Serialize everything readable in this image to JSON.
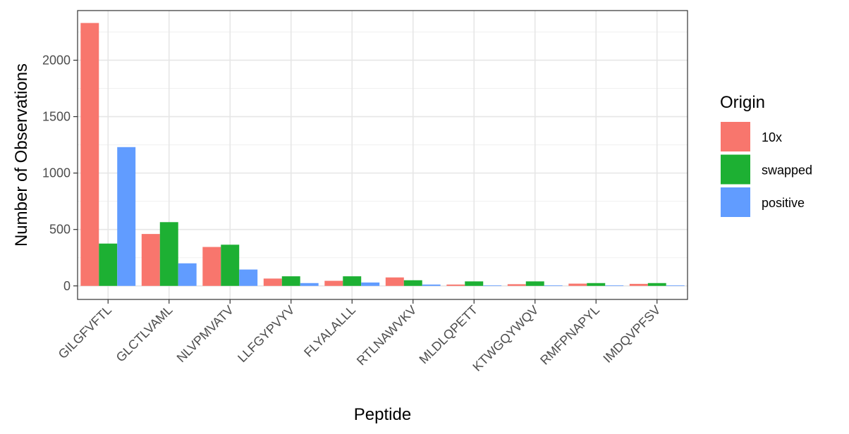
{
  "chart_data": {
    "type": "bar",
    "xlabel": "Peptide",
    "ylabel": "Number of Observations",
    "categories": [
      "GILGFVFTL",
      "GLCTLVAML",
      "NLVPMVATV",
      "LLFGYPVYV",
      "FLYALALLL",
      "RTLNAWVKV",
      "MLDLQPETT",
      "KTWGQYWQV",
      "RMFPNAPYL",
      "IMDQVPFSV"
    ],
    "series": [
      {
        "name": "10x",
        "color": "#F8766D",
        "values": [
          2330,
          460,
          345,
          65,
          45,
          75,
          12,
          15,
          20,
          18
        ]
      },
      {
        "name": "swapped",
        "color": "#1DB033",
        "values": [
          375,
          565,
          365,
          85,
          85,
          50,
          40,
          40,
          25,
          25
        ]
      },
      {
        "name": "positive",
        "color": "#619CFF",
        "values": [
          1230,
          200,
          145,
          25,
          30,
          12,
          5,
          5,
          5,
          5
        ]
      }
    ],
    "ylim": [
      -120,
      2440
    ],
    "yticks": [
      0,
      500,
      1000,
      1500,
      2000
    ],
    "grid": true,
    "legend": {
      "title": "Origin",
      "position": "right"
    }
  }
}
